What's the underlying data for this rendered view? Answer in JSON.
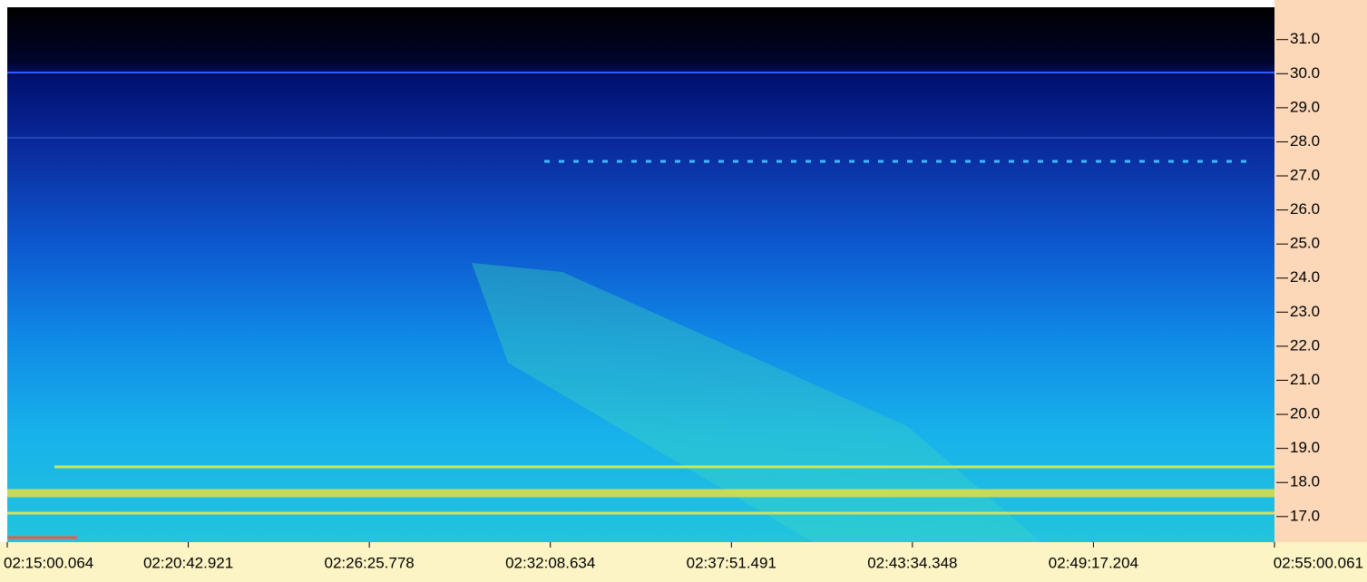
{
  "chart_data": {
    "type": "spectrogram",
    "ylim": [
      16.25,
      31.95
    ],
    "yticks": [
      {
        "value": 17,
        "label": "17.0"
      },
      {
        "value": 18,
        "label": "18.0"
      },
      {
        "value": 19,
        "label": "19.0"
      },
      {
        "value": 20,
        "label": "20.0"
      },
      {
        "value": 21,
        "label": "21.0"
      },
      {
        "value": 22,
        "label": "22.0"
      },
      {
        "value": 23,
        "label": "23.0"
      },
      {
        "value": 24,
        "label": "24.0"
      },
      {
        "value": 25,
        "label": "25.0"
      },
      {
        "value": 26,
        "label": "26.0"
      },
      {
        "value": 27,
        "label": "27.0"
      },
      {
        "value": 28,
        "label": "28.0"
      },
      {
        "value": 29,
        "label": "29.0"
      },
      {
        "value": 30,
        "label": "30.0"
      },
      {
        "value": 31,
        "label": "31.0"
      }
    ],
    "x_labels": [
      "02:15:00.064",
      "02:20:42.921",
      "02:26:25.778",
      "02:32:08.634",
      "02:37:51.491",
      "02:43:34.348",
      "02:49:17.204",
      "02:55:00.061"
    ]
  }
}
